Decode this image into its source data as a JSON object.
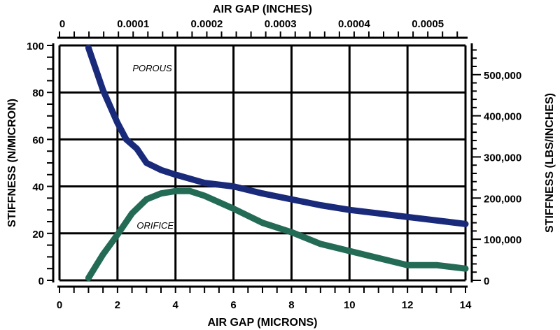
{
  "chart_data": {
    "type": "line",
    "title": "",
    "xlabel": "AIR GAP (MICRONS)",
    "x2label": "AIR GAP (INCHES)",
    "ylabel": "STIFFNESS (N/MICRON)",
    "y2label": "STIFFNESS (LBS/INCHES)",
    "xlim": [
      0,
      14
    ],
    "ylim": [
      0,
      100
    ],
    "grid": true,
    "x_ticks": [
      "0",
      "2",
      "4",
      "6",
      "8",
      "10",
      "12",
      "14"
    ],
    "x_tick_values": [
      0,
      2,
      4,
      6,
      8,
      10,
      12,
      14
    ],
    "y_ticks": [
      "0",
      "20",
      "40",
      "60",
      "80",
      "100"
    ],
    "y_tick_values": [
      0,
      20,
      40,
      60,
      80,
      100
    ],
    "x2_ticks": [
      "0",
      "0.0001",
      "0.0002",
      "0.0003",
      "0.0004",
      "0.0005"
    ],
    "x2_tick_values_inches": [
      0,
      0.0001,
      0.0002,
      0.0003,
      0.0004,
      0.0005
    ],
    "y2_ticks": [
      "0",
      "100,000",
      "200,000",
      "300,000",
      "400,000",
      "500,000"
    ],
    "y2_tick_values_lbs_per_in": [
      0,
      100000,
      200000,
      300000,
      400000,
      500000
    ],
    "series": [
      {
        "name": "POROUS",
        "color": "#1a2a7a",
        "x": [
          1,
          1.5,
          2,
          2.3,
          2.67,
          3,
          3.5,
          4,
          5,
          6,
          7,
          8,
          9,
          10,
          11,
          12,
          13,
          14
        ],
        "y": [
          99,
          81,
          67,
          60,
          56,
          50,
          47,
          45,
          41.5,
          40,
          37,
          34.5,
          32,
          30,
          28.5,
          27,
          25.5,
          24
        ]
      },
      {
        "name": "ORIFICE",
        "color": "#236b55",
        "x": [
          1,
          1.5,
          2,
          2.5,
          3,
          3.5,
          4,
          4.5,
          5,
          6,
          7,
          8,
          9,
          10,
          11,
          12,
          13,
          14
        ],
        "y": [
          1,
          11,
          19.5,
          28.5,
          34.5,
          37,
          38,
          38,
          36,
          30.5,
          24.5,
          20.5,
          15.5,
          12.5,
          9.5,
          6.5,
          6.5,
          5
        ]
      }
    ],
    "annotations": [
      {
        "text": "POROUS",
        "x": 3.2,
        "y": 89
      },
      {
        "text": "ORIFICE",
        "x": 3.3,
        "y": 22
      }
    ]
  }
}
